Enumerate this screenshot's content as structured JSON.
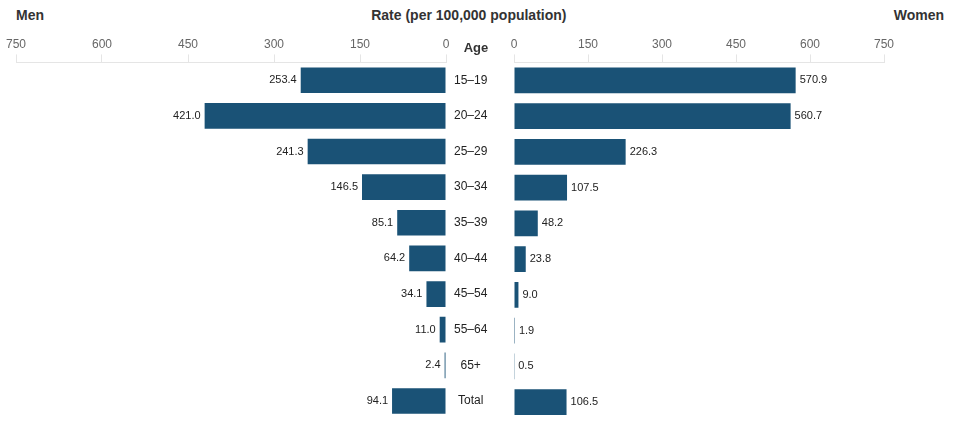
{
  "chart_data": {
    "type": "bar",
    "orientation": "horizontal",
    "title": "Rate (per 100,000 population)",
    "ylabel": "Age",
    "categories": [
      "15–19",
      "20–24",
      "25–29",
      "30–34",
      "35–39",
      "40–44",
      "45–54",
      "55–64",
      "65+",
      "Total"
    ],
    "series": [
      {
        "name": "Men",
        "color": "#1A5276",
        "values": [
          253.4,
          421.0,
          241.3,
          146.5,
          85.1,
          64.2,
          34.1,
          11.0,
          2.4,
          94.1
        ],
        "value_labels": [
          "253.4",
          "421.0",
          "241.3",
          "146.5",
          "85.1",
          "64.2",
          "34.1",
          "11.0",
          "2.4",
          "94.1"
        ]
      },
      {
        "name": "Women",
        "color": "#1A5276",
        "values": [
          570.9,
          560.7,
          226.3,
          107.5,
          48.2,
          23.8,
          9.0,
          1.9,
          0.5,
          106.5
        ],
        "value_labels": [
          "570.9",
          "560.7",
          "226.3",
          "107.5",
          "48.2",
          "23.8",
          "9.0",
          "1.9",
          "0.5",
          "106.5"
        ]
      }
    ],
    "xlim": [
      0,
      750
    ],
    "xticks": [
      0,
      150,
      300,
      450,
      600,
      750
    ],
    "grid": false,
    "data_labels": true
  }
}
